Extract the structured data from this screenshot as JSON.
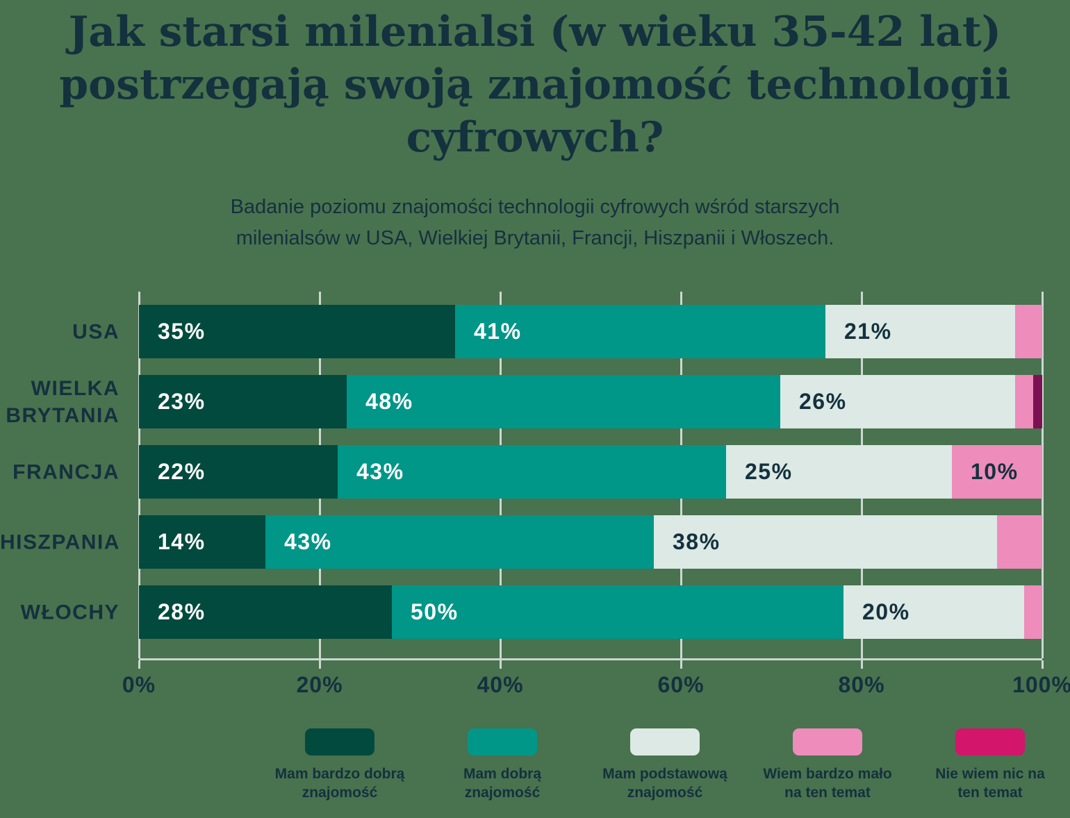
{
  "header": {
    "title": "Jak starsi milenialsi (w wieku 35-42 lat) postrzegają swoją znajomość technologii cyfrowych?",
    "title_lines": [
      "Jak starsi milenialsi (w wieku 35-42 lat)",
      "postrzegają swoją znajomość technologii",
      "cyfrowych?"
    ],
    "subtitle_lines": [
      "Badanie poziomu znajomości technologii cyfrowych wśród starszych",
      "milenialsów w USA, Wielkiej Brytanii, Francji, Hiszpanii i Włoszech."
    ]
  },
  "colors": {
    "background": "#49724f",
    "text": "#14313e",
    "grid": "#ccd8d1",
    "label_on_dark": "#ffffff",
    "label_on_light": "#14313e"
  },
  "chart_data": {
    "type": "bar",
    "orientation": "horizontal",
    "stacked": true,
    "grid": true,
    "legend_position": "bottom",
    "xlim": [
      0,
      100
    ],
    "x_ticks": [
      "0%",
      "20%",
      "40%",
      "60%",
      "80%",
      "100%"
    ],
    "x_tick_values": [
      0,
      20,
      40,
      60,
      80,
      100
    ],
    "label_min_percent": 10,
    "categories": [
      "USA",
      "WIELKA BRYTANIA",
      "FRANCJA",
      "HISZPANIA",
      "WŁOCHY"
    ],
    "series": [
      {
        "name": "Mam bardzo dobrą znajomość",
        "label_lines": [
          "Mam bardzo dobrą",
          "znajomość"
        ],
        "color": "#024a3e",
        "label_color": "#ffffff",
        "values": [
          35,
          23,
          22,
          14,
          28
        ]
      },
      {
        "name": "Mam dobrą znajomość",
        "label_lines": [
          "Mam dobrą",
          "znajomość"
        ],
        "color": "#009688",
        "label_color": "#ffffff",
        "values": [
          41,
          48,
          43,
          43,
          50
        ]
      },
      {
        "name": "Mam podstawową znajomość",
        "label_lines": [
          "Mam podstawową",
          "znajomość"
        ],
        "color": "#dce9e4",
        "label_color": "#14313e",
        "values": [
          21,
          26,
          25,
          38,
          20
        ]
      },
      {
        "name": "Wiem bardzo mało na ten temat",
        "label_lines": [
          "Wiem bardzo mało",
          "na ten temat"
        ],
        "color": "#ee8cbb",
        "label_color": "#14313e",
        "values": [
          3,
          2,
          10,
          5,
          2
        ]
      },
      {
        "name": "Nie wiem nic na ten temat",
        "label_lines": [
          "Nie wiem nic na",
          "ten temat"
        ],
        "color": "#d3156c",
        "bar_color": "#7d1053",
        "label_color": "#14313e",
        "values": [
          0,
          1,
          0,
          0,
          0
        ]
      }
    ]
  }
}
